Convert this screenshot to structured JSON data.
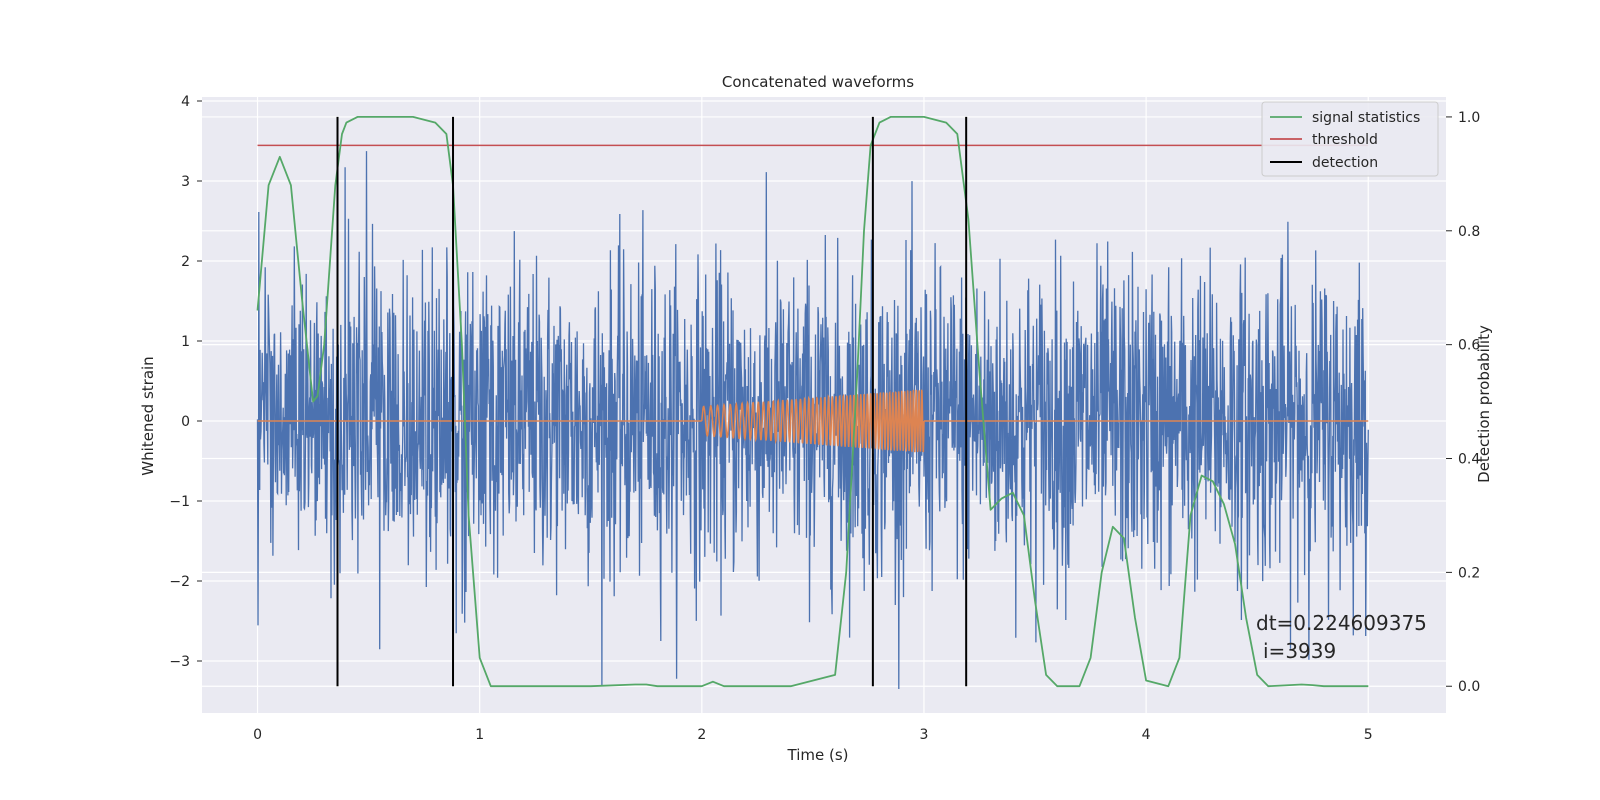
{
  "chart_data": {
    "type": "line",
    "title": "Concatenated waveforms",
    "xlabel": "Time (s)",
    "ylabel": "Whitened strain",
    "y2label": "Detection probability",
    "xlim": [
      -0.25,
      5.35
    ],
    "ylim": [
      -3.65,
      4.05
    ],
    "y2lim": [
      -0.047,
      1.035
    ],
    "xticks": [
      0,
      1,
      2,
      3,
      4,
      5
    ],
    "yticks": [
      -3,
      -2,
      -1,
      0,
      1,
      2,
      3,
      4
    ],
    "y2ticks": [
      0.0,
      0.2,
      0.4,
      0.6,
      0.8,
      1.0
    ],
    "grid": true,
    "legend_position": "top-right",
    "legend": [
      "signal statistics",
      "threshold",
      "detection"
    ],
    "colors": {
      "strain": "#4c72b0",
      "injection": "#dd8452",
      "signal_statistics": "#55a868",
      "threshold": "#c44e52",
      "detection": "#000000",
      "background": "#eaeaf2"
    },
    "strain_series": {
      "name": "",
      "x_range": [
        0,
        5
      ],
      "approx_amplitude_range": [
        -3.35,
        3.7
      ]
    },
    "injection_series": {
      "name": "",
      "x_range": [
        2.0,
        3.0
      ],
      "amplitude_start": 0.18,
      "amplitude_end": 0.4
    },
    "signal_statistics": {
      "name": "signal statistics",
      "x": [
        0.0,
        0.05,
        0.1,
        0.15,
        0.2,
        0.25,
        0.27,
        0.3,
        0.35,
        0.38,
        0.4,
        0.45,
        0.5,
        0.7,
        0.8,
        0.85,
        0.88,
        0.92,
        0.95,
        1.0,
        1.05,
        1.5,
        1.7,
        1.75,
        1.8,
        2.0,
        2.05,
        2.1,
        2.4,
        2.6,
        2.65,
        2.7,
        2.73,
        2.76,
        2.8,
        2.85,
        3.0,
        3.1,
        3.15,
        3.2,
        3.25,
        3.3,
        3.35,
        3.4,
        3.45,
        3.5,
        3.55,
        3.6,
        3.7,
        3.75,
        3.8,
        3.85,
        3.9,
        3.95,
        4.0,
        4.1,
        4.15,
        4.2,
        4.25,
        4.3,
        4.35,
        4.4,
        4.45,
        4.5,
        4.55,
        4.7,
        4.75,
        4.8,
        5.0
      ],
      "y": [
        0.66,
        0.88,
        0.93,
        0.88,
        0.68,
        0.5,
        0.51,
        0.6,
        0.88,
        0.97,
        0.99,
        1.0,
        1.0,
        1.0,
        0.99,
        0.97,
        0.88,
        0.6,
        0.3,
        0.05,
        0.0,
        0.0,
        0.003,
        0.003,
        0.0,
        0.0,
        0.008,
        0.0,
        0.0,
        0.02,
        0.2,
        0.55,
        0.8,
        0.95,
        0.99,
        1.0,
        1.0,
        0.99,
        0.97,
        0.82,
        0.55,
        0.31,
        0.33,
        0.34,
        0.3,
        0.15,
        0.02,
        0.0,
        0.0,
        0.05,
        0.2,
        0.28,
        0.26,
        0.12,
        0.01,
        0.0,
        0.05,
        0.3,
        0.37,
        0.36,
        0.32,
        0.25,
        0.12,
        0.02,
        0.0,
        0.003,
        0.002,
        0.0,
        0.0
      ]
    },
    "threshold": {
      "name": "threshold",
      "value": 0.95,
      "x_range": [
        0,
        5
      ]
    },
    "detection": {
      "name": "detection",
      "x": [
        0.36,
        0.88,
        2.77,
        3.19
      ],
      "y_range": [
        0,
        1
      ]
    },
    "annotations": [
      "dt=0.224609375",
      "i=3939"
    ]
  }
}
